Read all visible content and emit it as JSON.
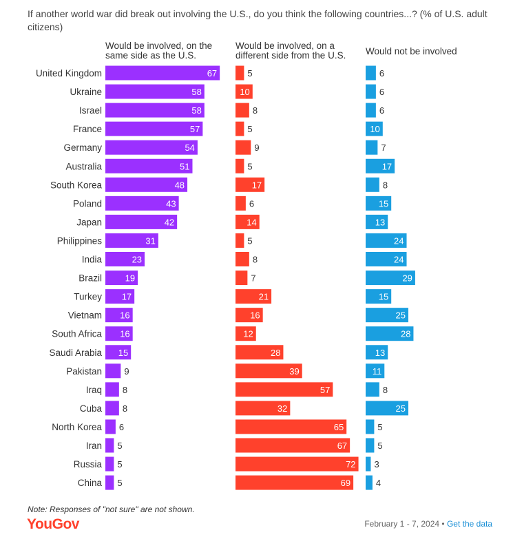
{
  "chart_data": {
    "type": "bar",
    "title": "If another world war did break out involving the U.S., do you think the following countries...? (% of U.S. adult citizens)",
    "categories": [
      "United Kingdom",
      "Ukraine",
      "Israel",
      "France",
      "Germany",
      "Australia",
      "South Korea",
      "Poland",
      "Japan",
      "Philippines",
      "India",
      "Brazil",
      "Turkey",
      "Vietnam",
      "South Africa",
      "Saudi Arabia",
      "Pakistan",
      "Iraq",
      "Cuba",
      "North Korea",
      "Iran",
      "Russia",
      "China"
    ],
    "series": [
      {
        "name": "Would be involved, on the same side as the U.S.",
        "color": "#9b30ff",
        "values": [
          67,
          58,
          58,
          57,
          54,
          51,
          48,
          43,
          42,
          31,
          23,
          19,
          17,
          16,
          16,
          15,
          9,
          8,
          8,
          6,
          5,
          5,
          5
        ]
      },
      {
        "name": "Would be involved, on a different side from the U.S.",
        "color": "#ff412c",
        "values": [
          5,
          10,
          8,
          5,
          9,
          5,
          17,
          6,
          14,
          5,
          8,
          7,
          21,
          16,
          12,
          28,
          39,
          57,
          32,
          65,
          67,
          72,
          69
        ]
      },
      {
        "name": "Would not be involved",
        "color": "#1a9fe0",
        "values": [
          6,
          6,
          6,
          10,
          7,
          17,
          8,
          15,
          13,
          24,
          24,
          29,
          15,
          25,
          28,
          13,
          11,
          8,
          25,
          5,
          5,
          3,
          4
        ]
      }
    ],
    "header_lines": [
      [
        "Would be involved, on the",
        "same side as the U.S."
      ],
      [
        "Would be involved, on a",
        "different side from the U.S."
      ],
      [
        "Would not be involved"
      ]
    ]
  },
  "note": "Note: Responses of \"not sure\" are not shown.",
  "brand": "YouGov",
  "date_range": "February 1 - 7, 2024",
  "separator": "•",
  "get_data_link": "Get the data"
}
